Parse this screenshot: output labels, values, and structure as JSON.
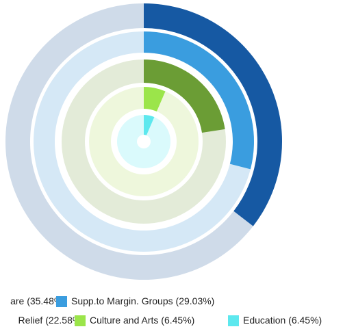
{
  "chart_data": {
    "type": "radial_bar",
    "series": [
      {
        "name": "are",
        "color": "#1659a3",
        "track": "#cfdbe9",
        "values": [
          35.48
        ],
        "value_labels": [
          "(35.48%)"
        ]
      },
      {
        "name": "Supp.to Margin. Groups",
        "color": "#3a9ddf",
        "track": "#d5e8f6",
        "values": [
          29.03
        ],
        "value_labels": [
          "(29.03%)"
        ]
      },
      {
        "name": "Relief",
        "color": "#6b9d35",
        "track": "#e3ebd8",
        "values": [
          22.58
        ],
        "value_labels": [
          "(22.58%)"
        ]
      },
      {
        "name": "Culture and Arts",
        "color": "#9be54a",
        "track": "#eef7dc",
        "values": [
          6.45
        ],
        "value_labels": [
          "(6.45%)"
        ]
      },
      {
        "name": "Education",
        "color": "#5de8ee",
        "track": "#dafafc",
        "values": [
          6.45
        ],
        "value_labels": [
          "(6.45%)"
        ]
      }
    ],
    "ylim": [
      0,
      100
    ]
  }
}
